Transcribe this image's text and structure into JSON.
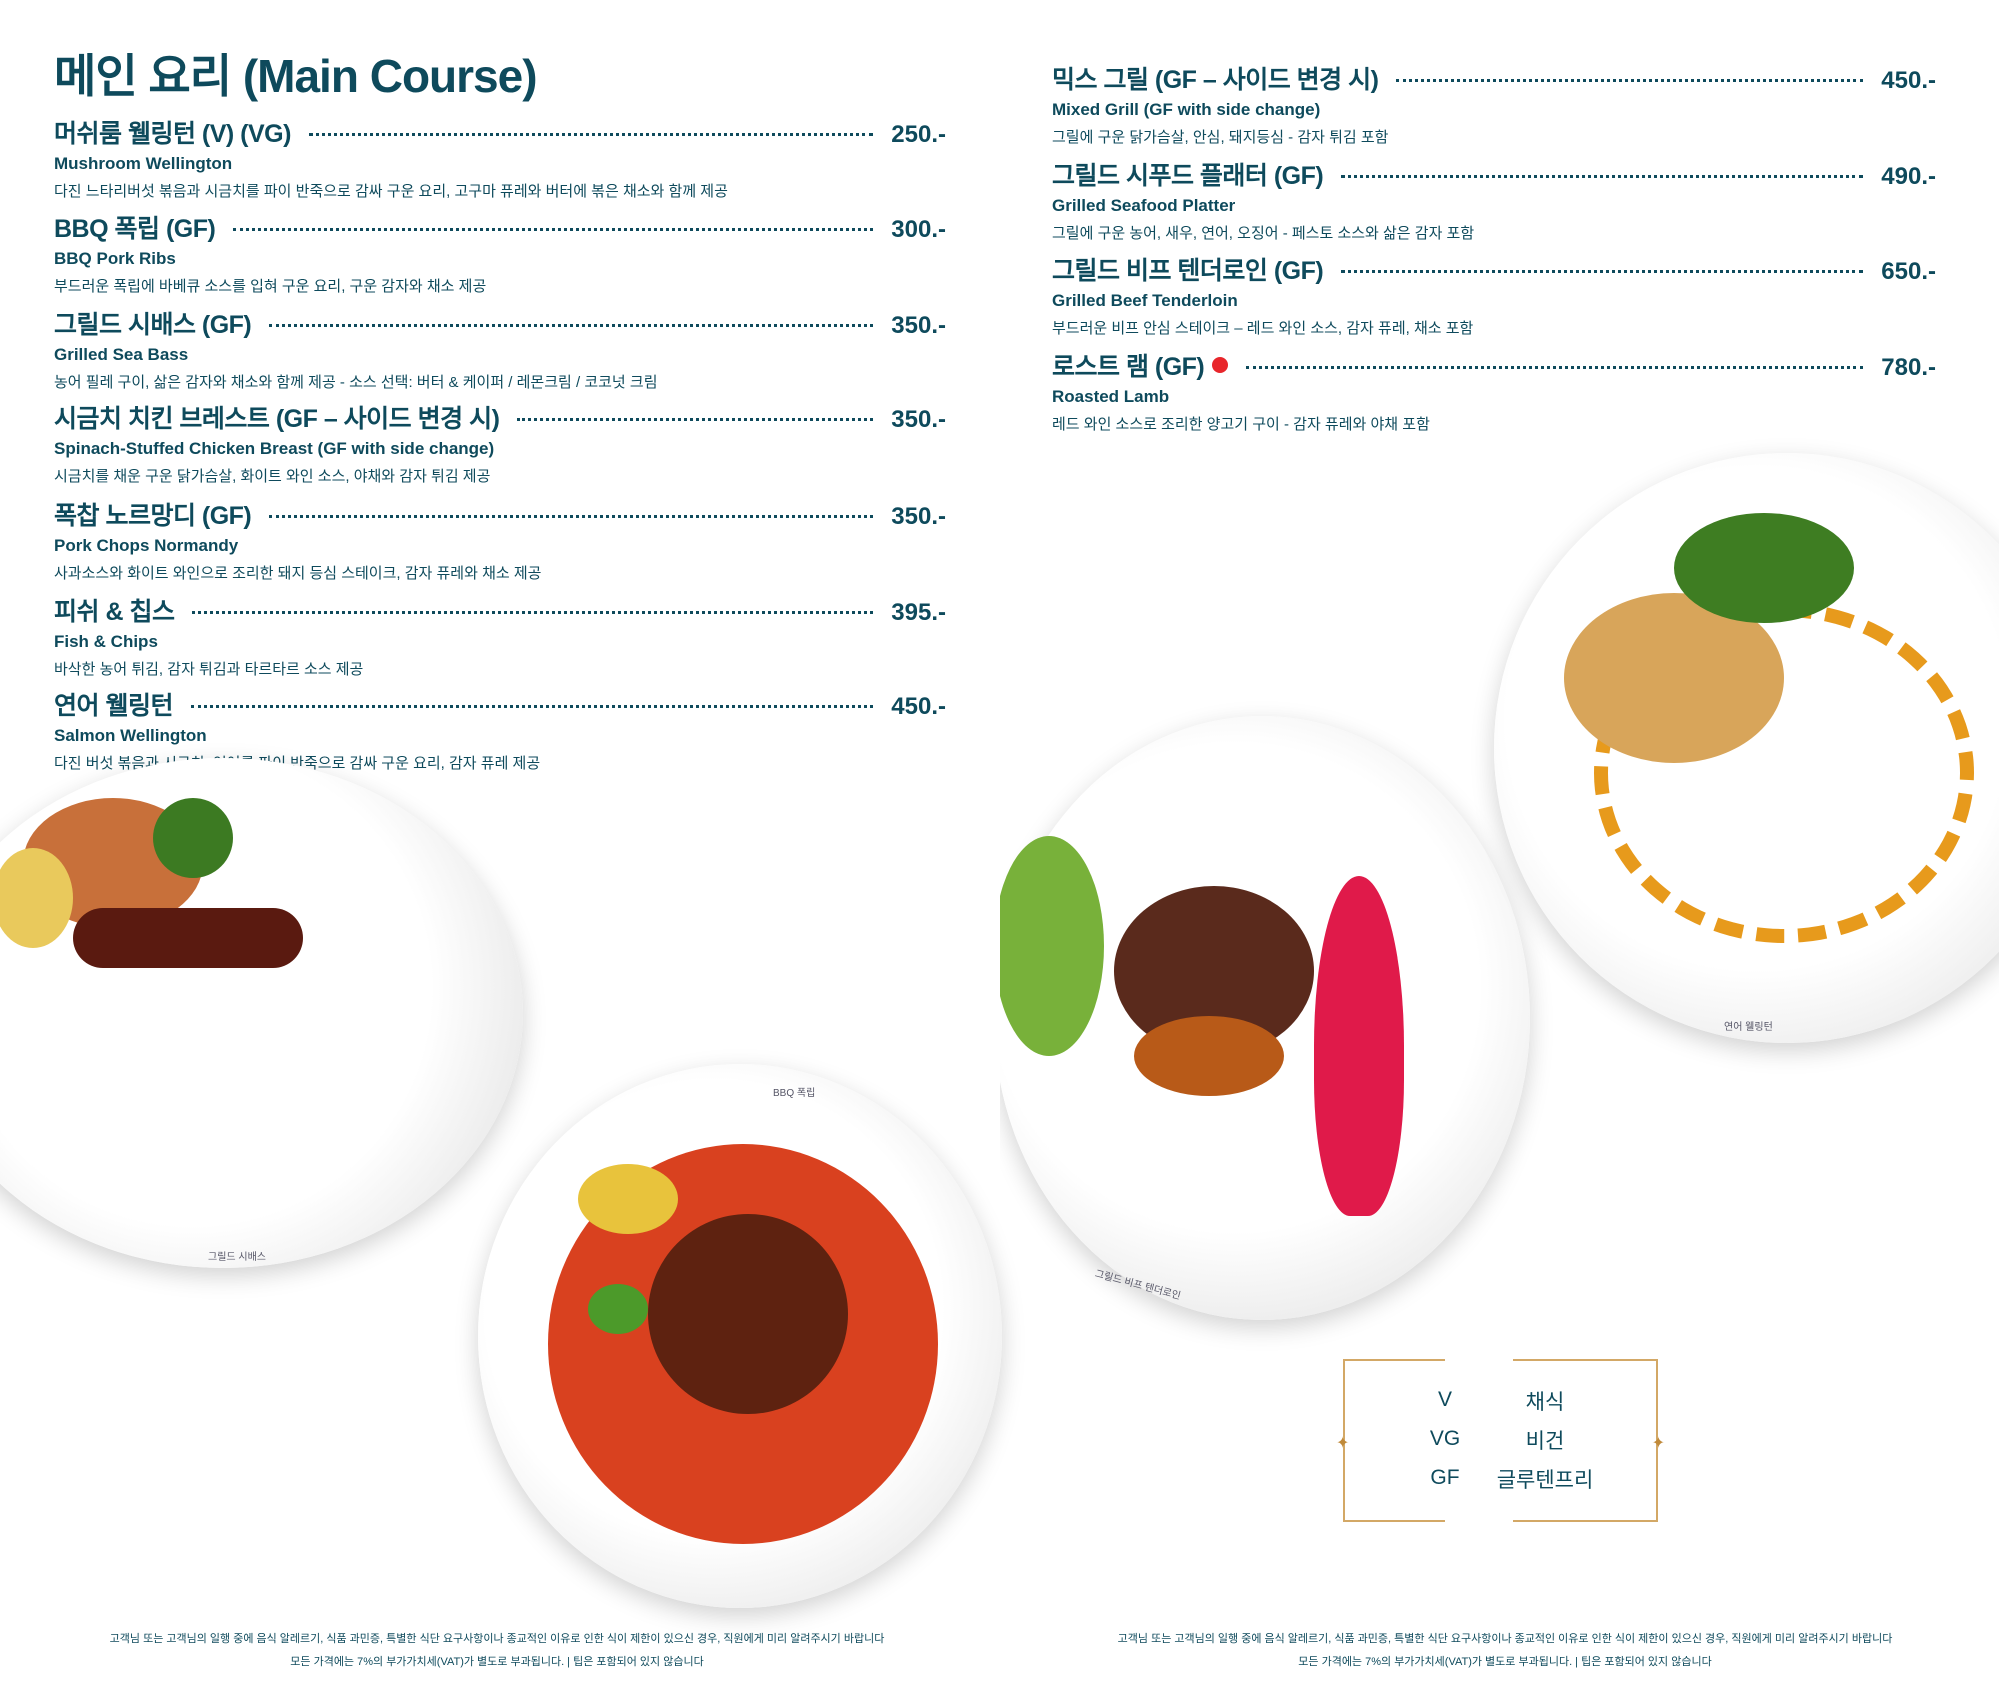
{
  "title": "메인 요리 (Main Course)",
  "left_items": [
    {
      "name": "머쉬룸 웰링턴  (V) (VG)",
      "en": "Mushroom Wellington",
      "desc": "다진 느타리버섯 볶음과 시금치를 파이 반죽으로 감싸 구운 요리, 고구마 퓨레와 버터에 볶은 채소와 함께 제공",
      "price": "250.-"
    },
    {
      "name": "BBQ 폭립  (GF)",
      "en": "BBQ Pork Ribs",
      "desc": "부드러운 폭립에 바베큐 소스를 입혀 구운 요리, 구운 감자와 채소 제공",
      "price": "300.-"
    },
    {
      "name": "그릴드 시배스  (GF)",
      "en": "Grilled Sea Bass",
      "desc": "농어 필레 구이, 삶은 감자와 채소와 함께 제공 - 소스 선택: 버터 & 케이퍼 / 레몬크림 / 코코넛 크림",
      "price": "350.-"
    },
    {
      "name": "시금치 치킨 브레스트 (GF – 사이드 변경 시)",
      "en": "Spinach-Stuffed Chicken Breast (GF with side change)",
      "desc": "시금치를 채운 구운 닭가슴살, 화이트 와인 소스, 야채와 감자 튀김 제공",
      "price": "350.-"
    },
    {
      "name": "폭찹 노르망디  (GF)",
      "en": "Pork Chops Normandy",
      "desc": "사과소스와 화이트 와인으로 조리한 돼지 등심 스테이크, 감자 퓨레와 채소 제공",
      "price": "350.-"
    },
    {
      "name": "피쉬 & 칩스",
      "en": "Fish & Chips",
      "desc": "바삭한 농어 튀김, 감자 튀김과 타르타르 소스 제공",
      "price": "395.-"
    },
    {
      "name": "연어 웰링턴",
      "en": "Salmon Wellington",
      "desc": "다진 버섯 볶음과 시금치, 연어를 파이 반죽으로 감싸 구운 요리, 감자 퓨레 제공",
      "price": "450.-"
    }
  ],
  "right_items": [
    {
      "name": "믹스 그릴  (GF – 사이드 변경 시)",
      "en": "Mixed Grill (GF with side change)",
      "desc": "그릴에 구운 닭가슴살, 안심, 돼지등심 - 감자 튀김 포함",
      "price": "450.-"
    },
    {
      "name": "그릴드 시푸드 플래터  (GF)",
      "en": "Grilled Seafood Platter",
      "desc": "그릴에 구운 농어, 새우, 연어, 오징어 - 페스토 소스와 삶은 감자 포함",
      "price": "490.-"
    },
    {
      "name": "그릴드 비프 텐더로인  (GF)",
      "en": "Grilled Beef Tenderloin",
      "desc": "부드러운 비프 안심 스테이크 – 레드 와인 소스, 감자 퓨레, 채소 포함",
      "price": "650.-"
    },
    {
      "name": "로스트 램  (GF)",
      "en": "Roasted Lamb",
      "desc": "레드 와인 소스로 조리한 양고기 구이 - 감자 퓨레와 야채 포함",
      "price": "780.-",
      "marker_color": "#e8262b"
    }
  ],
  "plate_labels": [
    "그릴드 시배스",
    "BBQ 폭립",
    "그릴드 비프 텐더로인",
    "연어 웰링턴"
  ],
  "legend": [
    {
      "code": "V",
      "label": "채식"
    },
    {
      "code": "VG",
      "label": "비건"
    },
    {
      "code": "GF",
      "label": "글루텐프리"
    }
  ],
  "footer": {
    "line1": "고객님 또는 고객님의 일행 중에 음식 알레르기, 식품 과민증, 특별한 식단 요구사항이나 종교적인 이유로 인한 식이 제한이 있으신 경우, 직원에게 미리 알려주시기 바랍니다",
    "line2": "모든 가격에는 7%의 부가가치세(VAT)가 별도로 부과됩니다. | 팁은 포함되어 있지 않습니다"
  },
  "colors": {
    "text": "#0e4a5c",
    "legend_border": "#d3a866",
    "marker": "#e8262b"
  }
}
